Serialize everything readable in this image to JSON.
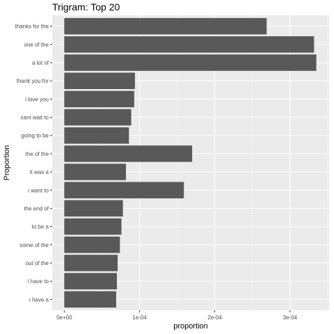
{
  "chart_data": {
    "type": "bar",
    "orientation": "horizontal",
    "title": "Trigram: Top 20",
    "xlabel": "proportion",
    "ylabel": "Proportion",
    "xlim": [
      -1.6e-05,
      0.000352
    ],
    "x_ticks": [
      0,
      0.0001,
      0.0002,
      0.0003
    ],
    "x_tick_labels": [
      "0e+00",
      "1e-04",
      "2e-04",
      "3e-04"
    ],
    "grid": true,
    "legend": "none",
    "colors": {
      "bar": "#595959",
      "panel": "#ebebeb",
      "grid_major": "#ffffff"
    },
    "categories": [
      "thanks for the",
      "one of the",
      "a lot of",
      "thank you for",
      "i love you",
      "cant wait to",
      "going to be",
      "the of the",
      "it was a",
      "i want to",
      "the end of",
      "to be a",
      "some of the",
      "out of the",
      "i have to",
      "i have a"
    ],
    "values": [
      0.000269,
      0.000332,
      0.000335,
      9.4e-05,
      9.3e-05,
      8.9e-05,
      8.6e-05,
      0.00017,
      8.2e-05,
      0.000159,
      7.8e-05,
      7.6e-05,
      7.4e-05,
      7.1e-05,
      7e-05,
      6.9e-05
    ]
  }
}
